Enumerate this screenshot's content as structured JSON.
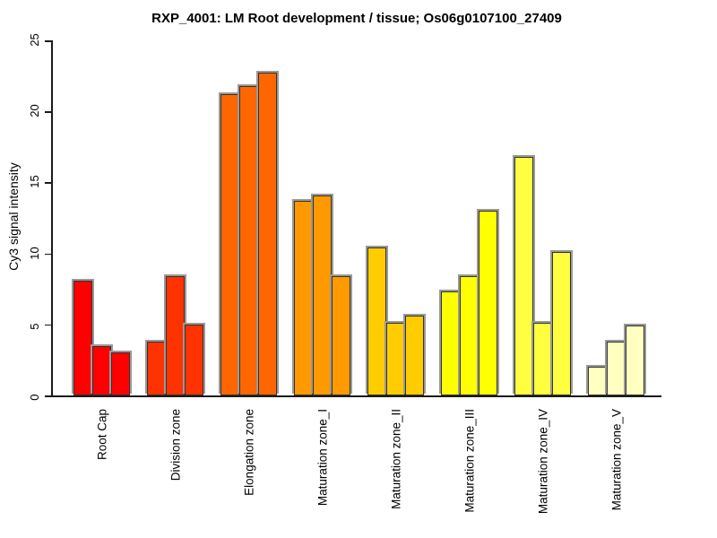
{
  "chart_data": {
    "type": "bar",
    "title": "RXP_4001: LM Root development / tissue; Os06g0107100_27409",
    "xlabel": "",
    "ylabel": "Cy3 signal intensity",
    "ylim": [
      0,
      25
    ],
    "yticks": [
      0,
      5,
      10,
      15,
      20,
      25
    ],
    "grid": false,
    "legend": false,
    "background": "#ffffff",
    "bar_border_color": "#333333",
    "bar_shadow_color": "#999999",
    "bars_per_group": 3,
    "categories": [
      "Root Cap",
      "Division zone",
      "Elongation zone",
      "Maturation zone_I",
      "Maturation zone_II",
      "Maturation zone_III",
      "Maturation zone_IV",
      "Maturation zone_V"
    ],
    "group_colors": [
      "#FF0000",
      "#FF3300",
      "#FF6600",
      "#FF9900",
      "#FFCC00",
      "#FFFF00",
      "#FFFF40",
      "#FFFFBF"
    ],
    "values": [
      [
        8.1,
        3.5,
        3.0
      ],
      [
        3.8,
        8.4,
        5.0
      ],
      [
        21.2,
        21.8,
        22.7
      ],
      [
        13.7,
        14.1,
        8.4
      ],
      [
        10.4,
        5.1,
        5.6
      ],
      [
        7.3,
        8.4,
        13.0
      ],
      [
        16.8,
        5.1,
        10.1
      ],
      [
        2.0,
        3.8,
        4.9
      ]
    ]
  }
}
